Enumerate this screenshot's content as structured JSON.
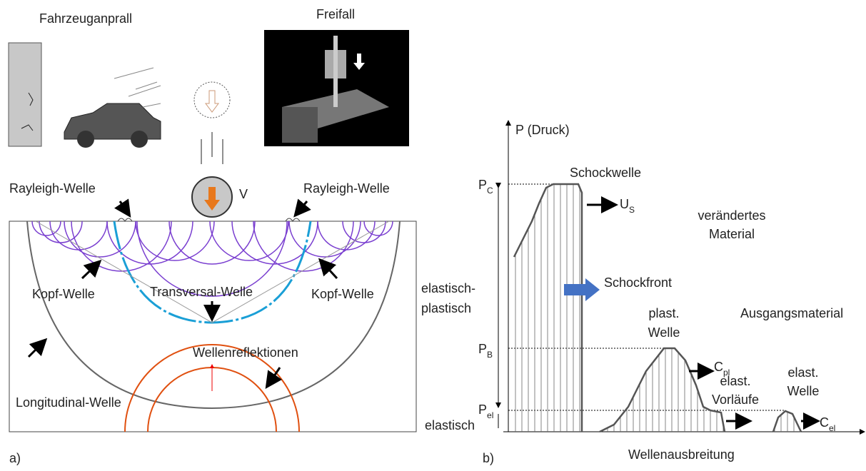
{
  "panel_a": {
    "label": "a)",
    "vehicle_impact": "Fahrzeuganprall",
    "free_fall": "Freifall",
    "velocity": "V",
    "rayleigh_left": "Rayleigh-Welle",
    "rayleigh_right": "Rayleigh-Welle",
    "head_wave_left": "Kopf-Welle",
    "head_wave_right": "Kopf-Welle",
    "transversal_wave": "Transversal-Welle",
    "longitudinal_wave": "Longitudinal-Welle",
    "reflections": "Wellenreflektionen"
  },
  "panel_b": {
    "label": "b)",
    "y_axis": "P (Druck)",
    "x_axis": "Wellenausbreitung",
    "shock_wave": "Schockwelle",
    "p_c": {
      "main": "P",
      "sub": "C"
    },
    "u_s": {
      "main": "U",
      "sub": "S"
    },
    "altered_material": [
      "verändertes",
      "Material"
    ],
    "elastic_plastic": [
      "elastisch-",
      "plastisch"
    ],
    "shock_front": "Schockfront",
    "plastic_wave": [
      "plast.",
      "Welle"
    ],
    "initial_material": "Ausgangsmaterial",
    "p_b": {
      "main": "P",
      "sub": "B"
    },
    "c_pl": {
      "main": "C",
      "sub": "pl"
    },
    "elastic_precursors": [
      "elast.",
      "Vorläufe"
    ],
    "elastic_wave": [
      "elast.",
      "Welle"
    ],
    "p_el": {
      "main": "P",
      "sub": "el"
    },
    "c_el": {
      "main": "C",
      "sub": "el"
    },
    "elastic": "elastisch"
  }
}
